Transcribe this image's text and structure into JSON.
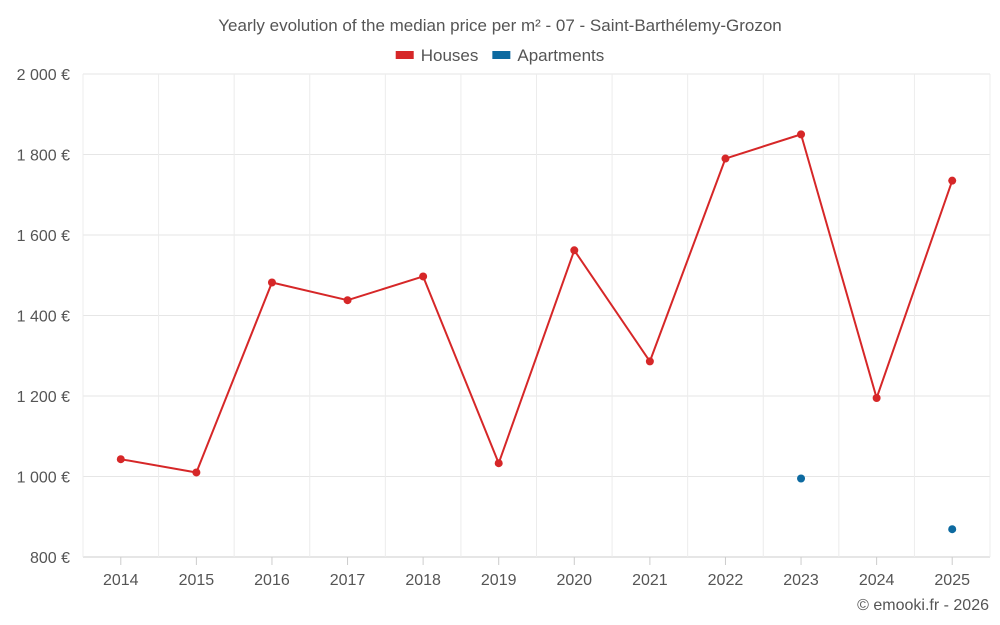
{
  "chart_data": {
    "type": "line",
    "title": "Yearly evolution of the median price per m² - 07 - Saint-Barthélemy-Grozon",
    "categories": [
      "2014",
      "2015",
      "2016",
      "2017",
      "2018",
      "2019",
      "2020",
      "2021",
      "2022",
      "2023",
      "2024",
      "2025"
    ],
    "y_tick_labels": [
      "800 €",
      "1 000 €",
      "1 200 €",
      "1 400 €",
      "1 600 €",
      "1 800 €",
      "2 000 €"
    ],
    "y_ticks": [
      800,
      1000,
      1200,
      1400,
      1600,
      1800,
      2000
    ],
    "ylim": [
      800,
      2000
    ],
    "grid": true,
    "legend_position": "top-center",
    "series": [
      {
        "name": "Houses",
        "color": "#d62728",
        "line": true,
        "values": [
          1043,
          1010,
          1482,
          1438,
          1497,
          1033,
          1562,
          1286,
          1790,
          1850,
          1195,
          1735
        ]
      },
      {
        "name": "Apartments",
        "color": "#0d6aa0",
        "line": false,
        "values": [
          null,
          null,
          null,
          null,
          null,
          null,
          null,
          null,
          null,
          995,
          null,
          869
        ]
      }
    ],
    "footer": "© emooki.fr - 2026"
  }
}
